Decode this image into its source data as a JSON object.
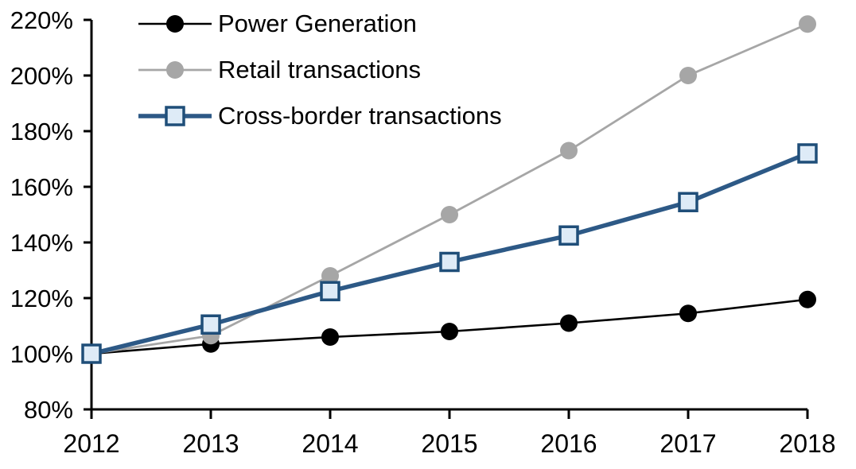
{
  "chart_data": {
    "type": "line",
    "title": "",
    "xlabel": "",
    "ylabel": "",
    "x_labels": [
      "2012",
      "2013",
      "2014",
      "2015",
      "2016",
      "2017",
      "2018"
    ],
    "y_axis": {
      "min": 80,
      "max": 220,
      "step": 20,
      "tick_suffix": "%"
    },
    "grid": false,
    "legend_position": "top-left",
    "background_color": "#FFFFFF",
    "axis_color": "#000000",
    "series": [
      {
        "name": "Power Generation",
        "values": [
          100,
          103.5,
          106,
          108,
          111,
          114.5,
          119.5
        ],
        "line_color": "#000000",
        "line_width": 2.6,
        "marker": "circle",
        "marker_fill": "#000000",
        "marker_stroke": "#000000",
        "marker_stroke_width": 0,
        "marker_size": 22
      },
      {
        "name": "Retail transactions",
        "values": [
          100,
          106.5,
          128,
          150,
          173,
          200,
          218.5
        ],
        "line_color": "#A6A6A6",
        "line_width": 2.8,
        "marker": "circle",
        "marker_fill": "#A6A6A6",
        "marker_stroke": "#A6A6A6",
        "marker_stroke_width": 0,
        "marker_size": 22
      },
      {
        "name": "Cross-border transactions",
        "values": [
          100,
          110.5,
          122.5,
          133,
          142.5,
          154.5,
          172
        ],
        "line_color": "#2D5986",
        "line_width": 5.5,
        "marker": "square",
        "marker_fill": "#DEEBF7",
        "marker_stroke": "#1F4E79",
        "marker_stroke_width": 3.5,
        "marker_size": 22
      }
    ]
  }
}
